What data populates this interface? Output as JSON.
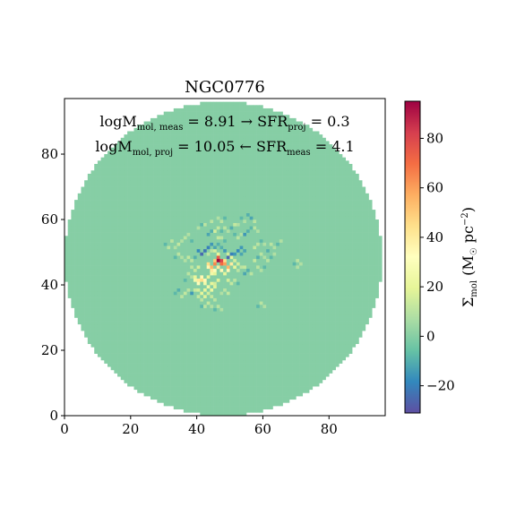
{
  "chart_data": {
    "type": "heatmap",
    "title": "NGC0776",
    "annotations": [
      {
        "main": "logM",
        "sub": "mol, meas",
        "rest": " = 8.91 → SFR",
        "sub2": "proj",
        "rest2": " = 0.3"
      },
      {
        "main": "logM",
        "sub": "mol, proj",
        "rest": " = 10.05 ← SFR",
        "sub2": "meas",
        "rest2": " = 4.1"
      }
    ],
    "xlim": [
      0,
      97
    ],
    "ylim": [
      0,
      97
    ],
    "x_ticks": [
      0,
      20,
      40,
      60,
      80
    ],
    "y_ticks": [
      0,
      20,
      40,
      60,
      80
    ],
    "map_center": [
      48,
      48
    ],
    "map_radius": 48,
    "colorbar": {
      "label_main": "Σ",
      "label_sub": "mol",
      "label_rest": " (M",
      "label_sun": "☉",
      "label_rest2": " pc",
      "label_sup": "−2",
      "label_end": ")",
      "vmin": -31,
      "vmax": 95,
      "ticks": [
        -20,
        0,
        20,
        40,
        60,
        80
      ],
      "tick_labels": [
        "−20",
        "0",
        "20",
        "40",
        "60",
        "80"
      ],
      "colormap": "Spectral_r"
    },
    "background_value": 0,
    "pixel_values": [
      [
        46,
        47,
        95
      ],
      [
        47,
        47,
        80
      ],
      [
        46,
        48,
        75
      ],
      [
        47,
        46,
        70
      ],
      [
        45,
        46,
        65
      ],
      [
        48,
        46,
        60
      ],
      [
        44,
        45,
        55
      ],
      [
        49,
        45,
        55
      ],
      [
        45,
        47,
        50
      ],
      [
        48,
        47,
        45
      ],
      [
        43,
        46,
        45
      ],
      [
        50,
        46,
        40
      ],
      [
        44,
        44,
        40
      ],
      [
        47,
        44,
        35
      ],
      [
        46,
        45,
        40
      ],
      [
        43,
        45,
        35
      ],
      [
        49,
        44,
        35
      ],
      [
        45,
        44,
        30
      ],
      [
        41,
        41,
        45
      ],
      [
        40,
        41,
        40
      ],
      [
        42,
        41,
        35
      ],
      [
        41,
        42,
        35
      ],
      [
        40,
        40,
        30
      ],
      [
        42,
        40,
        25
      ],
      [
        39,
        41,
        25
      ],
      [
        39,
        42,
        20
      ],
      [
        43,
        42,
        20
      ],
      [
        44,
        43,
        25
      ],
      [
        45,
        43,
        20
      ],
      [
        48,
        43,
        20
      ],
      [
        51,
        45,
        20
      ],
      [
        52,
        46,
        15
      ],
      [
        51,
        47,
        15
      ],
      [
        50,
        48,
        20
      ],
      [
        49,
        49,
        15
      ],
      [
        46,
        49,
        20
      ],
      [
        45,
        50,
        15
      ],
      [
        44,
        50,
        10
      ],
      [
        43,
        49,
        10
      ],
      [
        52,
        44,
        10
      ],
      [
        53,
        45,
        10
      ],
      [
        41,
        49,
        -25
      ],
      [
        42,
        50,
        -22
      ],
      [
        43,
        51,
        -20
      ],
      [
        40,
        50,
        -18
      ],
      [
        44,
        52,
        -15
      ],
      [
        49,
        48,
        -25
      ],
      [
        50,
        49,
        -20
      ],
      [
        51,
        49,
        -15
      ],
      [
        48,
        50,
        -15
      ],
      [
        52,
        50,
        -18
      ],
      [
        53,
        51,
        -15
      ],
      [
        54,
        50,
        -12
      ],
      [
        53,
        49,
        -12
      ],
      [
        45,
        51,
        -12
      ],
      [
        46,
        52,
        -10
      ],
      [
        47,
        51,
        -10
      ],
      [
        43,
        55,
        -12
      ],
      [
        44,
        56,
        -10
      ],
      [
        45,
        56,
        15
      ],
      [
        46,
        57,
        12
      ],
      [
        47,
        56,
        -8
      ],
      [
        48,
        57,
        10
      ],
      [
        49,
        56,
        8
      ],
      [
        50,
        57,
        -10
      ],
      [
        51,
        58,
        12
      ],
      [
        52,
        58,
        8
      ],
      [
        54,
        55,
        -15
      ],
      [
        55,
        56,
        -10
      ],
      [
        56,
        57,
        -8
      ],
      [
        57,
        57,
        10
      ],
      [
        58,
        56,
        8
      ],
      [
        56,
        60,
        -12
      ],
      [
        55,
        61,
        -10
      ],
      [
        57,
        59,
        10
      ],
      [
        54,
        59,
        8
      ],
      [
        53,
        60,
        -8
      ],
      [
        47,
        59,
        10
      ],
      [
        46,
        60,
        8
      ],
      [
        48,
        60,
        -8
      ],
      [
        44,
        59,
        10
      ],
      [
        36,
        54,
        10
      ],
      [
        37,
        55,
        8
      ],
      [
        38,
        53,
        -8
      ],
      [
        35,
        53,
        8
      ],
      [
        34,
        52,
        12
      ],
      [
        33,
        51,
        8
      ],
      [
        31,
        51,
        10
      ],
      [
        30,
        52,
        -8
      ],
      [
        32,
        53,
        10
      ],
      [
        39,
        48,
        -10
      ],
      [
        38,
        47,
        10
      ],
      [
        37,
        48,
        12
      ],
      [
        36,
        47,
        8
      ],
      [
        40,
        45,
        15
      ],
      [
        39,
        44,
        12
      ],
      [
        38,
        45,
        10
      ],
      [
        41,
        37,
        20
      ],
      [
        42,
        36,
        18
      ],
      [
        43,
        37,
        15
      ],
      [
        44,
        38,
        22
      ],
      [
        45,
        39,
        18
      ],
      [
        43,
        39,
        25
      ],
      [
        42,
        38,
        20
      ],
      [
        44,
        40,
        20
      ],
      [
        45,
        40,
        15
      ],
      [
        46,
        41,
        18
      ],
      [
        40,
        36,
        12
      ],
      [
        41,
        35,
        10
      ],
      [
        44,
        36,
        12
      ],
      [
        45,
        35,
        10
      ],
      [
        38,
        37,
        -15
      ],
      [
        39,
        38,
        12
      ],
      [
        37,
        38,
        10
      ],
      [
        40,
        38,
        15
      ],
      [
        34,
        38,
        -10
      ],
      [
        33,
        37,
        -8
      ],
      [
        35,
        36,
        10
      ],
      [
        36,
        37,
        12
      ],
      [
        43,
        34,
        12
      ],
      [
        42,
        33,
        10
      ],
      [
        44,
        33,
        8
      ],
      [
        41,
        33,
        -8
      ],
      [
        50,
        40,
        12
      ],
      [
        51,
        41,
        10
      ],
      [
        49,
        41,
        15
      ],
      [
        52,
        40,
        -8
      ],
      [
        54,
        43,
        -12
      ],
      [
        55,
        44,
        -10
      ],
      [
        56,
        43,
        10
      ],
      [
        54,
        45,
        12
      ],
      [
        57,
        47,
        12
      ],
      [
        58,
        48,
        -10
      ],
      [
        59,
        49,
        10
      ],
      [
        60,
        48,
        8
      ],
      [
        61,
        47,
        10
      ],
      [
        62,
        48,
        -8
      ],
      [
        63,
        49,
        8
      ],
      [
        61,
        50,
        -10
      ],
      [
        57,
        51,
        12
      ],
      [
        58,
        52,
        10
      ],
      [
        59,
        53,
        -8
      ],
      [
        60,
        52,
        8
      ],
      [
        58,
        45,
        10
      ],
      [
        59,
        44,
        8
      ],
      [
        60,
        45,
        -8
      ],
      [
        62,
        52,
        10
      ],
      [
        63,
        51,
        8
      ],
      [
        64,
        52,
        -8
      ],
      [
        65,
        53,
        8
      ],
      [
        70,
        47,
        10
      ],
      [
        71,
        46,
        8
      ],
      [
        69,
        46,
        -8
      ],
      [
        70,
        45,
        8
      ],
      [
        59,
        34,
        10
      ],
      [
        60,
        33,
        8
      ],
      [
        58,
        33,
        -8
      ],
      [
        48,
        38,
        10
      ],
      [
        47,
        37,
        8
      ],
      [
        49,
        37,
        12
      ],
      [
        46,
        33,
        10
      ],
      [
        47,
        32,
        8
      ],
      [
        45,
        32,
        -8
      ],
      [
        38,
        42,
        8
      ],
      [
        37,
        43,
        10
      ],
      [
        36,
        41,
        -8
      ],
      [
        52,
        54,
        10
      ],
      [
        53,
        55,
        8
      ],
      [
        51,
        55,
        -8
      ],
      [
        41,
        58,
        -8
      ],
      [
        42,
        58,
        10
      ],
      [
        40,
        57,
        8
      ],
      [
        46,
        54,
        12
      ],
      [
        47,
        54,
        10
      ],
      [
        48,
        53,
        -8
      ],
      [
        35,
        48,
        8
      ],
      [
        34,
        49,
        10
      ],
      [
        33,
        48,
        -8
      ]
    ]
  }
}
